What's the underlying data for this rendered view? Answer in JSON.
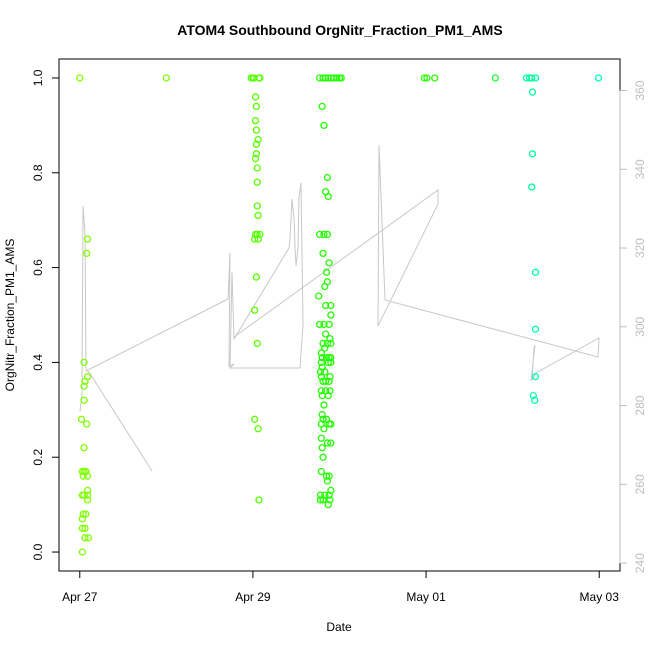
{
  "chart_data": {
    "type": "scatter",
    "title": "ATOM4 Southbound OrgNitr_Fraction_PM1_AMS",
    "xlabel": "Date",
    "ylabel": "OrgNitr_Fraction_PM1_AMS",
    "x_unit": "days since Apr 27 00:00",
    "xlim": [
      -0.24,
      6.24
    ],
    "ylim": [
      -0.04,
      1.04
    ],
    "y2lim": [
      238,
      368
    ],
    "x_ticks": [
      {
        "value": 0,
        "label": "Apr 27"
      },
      {
        "value": 2,
        "label": "Apr 29"
      },
      {
        "value": 4,
        "label": "May 01"
      },
      {
        "value": 6,
        "label": "May 03"
      }
    ],
    "y_ticks": [
      {
        "value": 0.0,
        "label": "0.0"
      },
      {
        "value": 0.2,
        "label": "0.2"
      },
      {
        "value": 0.4,
        "label": "0.4"
      },
      {
        "value": 0.6,
        "label": "0.6"
      },
      {
        "value": 0.8,
        "label": "0.8"
      },
      {
        "value": 1.0,
        "label": "1.0"
      }
    ],
    "y2_ticks": [
      {
        "value": 240,
        "label": "240"
      },
      {
        "value": 260,
        "label": "260"
      },
      {
        "value": 280,
        "label": "280"
      },
      {
        "value": 300,
        "label": "300"
      },
      {
        "value": 320,
        "label": "320"
      },
      {
        "value": 340,
        "label": "340"
      },
      {
        "value": 360,
        "label": "360"
      }
    ],
    "points_colors": {
      "yellowgreen": "#7fff00",
      "green": "#00ff00",
      "springgreen": "#00ff7f",
      "cyan": "#00ffbf"
    },
    "points": [
      [
        0.0,
        1.0,
        "#7fff00"
      ],
      [
        0.02,
        0.28,
        "#7fff00"
      ],
      [
        0.03,
        0.17,
        "#7fff00"
      ],
      [
        0.03,
        0.12,
        "#7fff00"
      ],
      [
        0.03,
        0.07,
        "#7fff00"
      ],
      [
        0.03,
        0.05,
        "#7fff00"
      ],
      [
        0.03,
        0.0,
        "#7fff00"
      ],
      [
        0.04,
        0.16,
        "#7fff00"
      ],
      [
        0.04,
        0.08,
        "#7fff00"
      ],
      [
        0.05,
        0.4,
        "#7fff00"
      ],
      [
        0.05,
        0.35,
        "#7fff00"
      ],
      [
        0.05,
        0.32,
        "#7fff00"
      ],
      [
        0.05,
        0.22,
        "#7fff00"
      ],
      [
        0.05,
        0.17,
        "#7fff00"
      ],
      [
        0.05,
        0.12,
        "#7fff00"
      ],
      [
        0.06,
        0.36,
        "#7fff00"
      ],
      [
        0.06,
        0.05,
        "#7fff00"
      ],
      [
        0.06,
        0.03,
        "#7fff00"
      ],
      [
        0.07,
        0.08,
        "#7fff00"
      ],
      [
        0.07,
        0.17,
        "#7fff00"
      ],
      [
        0.08,
        0.63,
        "#7fff00"
      ],
      [
        0.08,
        0.27,
        "#7fff00"
      ],
      [
        0.09,
        0.66,
        "#7fff00"
      ],
      [
        0.09,
        0.37,
        "#7fff00"
      ],
      [
        0.09,
        0.16,
        "#7fff00"
      ],
      [
        0.09,
        0.13,
        "#7fff00"
      ],
      [
        0.09,
        0.12,
        "#7fff00"
      ],
      [
        0.09,
        0.11,
        "#7fff00"
      ],
      [
        0.1,
        0.03,
        "#7fff00"
      ],
      [
        1.0,
        1.0,
        "#7fff00"
      ],
      [
        1.98,
        1.0,
        "#55ff00"
      ],
      [
        2.0,
        1.0,
        "#55ff00"
      ],
      [
        2.01,
        1.0,
        "#55ff00"
      ],
      [
        2.02,
        0.28,
        "#55ff00"
      ],
      [
        2.02,
        0.51,
        "#55ff00"
      ],
      [
        2.02,
        0.66,
        "#55ff00"
      ],
      [
        2.03,
        0.96,
        "#55ff00"
      ],
      [
        2.03,
        0.91,
        "#55ff00"
      ],
      [
        2.03,
        0.83,
        "#55ff00"
      ],
      [
        2.03,
        0.67,
        "#55ff00"
      ],
      [
        2.04,
        0.94,
        "#55ff00"
      ],
      [
        2.04,
        0.89,
        "#55ff00"
      ],
      [
        2.04,
        0.86,
        "#55ff00"
      ],
      [
        2.04,
        0.84,
        "#55ff00"
      ],
      [
        2.04,
        0.58,
        "#55ff00"
      ],
      [
        2.05,
        0.81,
        "#55ff00"
      ],
      [
        2.05,
        0.78,
        "#55ff00"
      ],
      [
        2.05,
        0.73,
        "#55ff00"
      ],
      [
        2.05,
        0.67,
        "#55ff00"
      ],
      [
        2.05,
        0.44,
        "#55ff00"
      ],
      [
        2.06,
        0.87,
        "#55ff00"
      ],
      [
        2.06,
        0.71,
        "#55ff00"
      ],
      [
        2.06,
        0.66,
        "#55ff00"
      ],
      [
        2.06,
        0.26,
        "#55ff00"
      ],
      [
        2.07,
        0.11,
        "#55ff00"
      ],
      [
        2.07,
        1.0,
        "#55ff00"
      ],
      [
        2.08,
        1.0,
        "#55ff00"
      ],
      [
        2.08,
        0.67,
        "#55ff00"
      ],
      [
        2.77,
        1.0,
        "#22ff00"
      ],
      [
        2.81,
        1.0,
        "#22ff00"
      ],
      [
        2.84,
        1.0,
        "#22ff00"
      ],
      [
        2.87,
        1.0,
        "#22ff00"
      ],
      [
        2.9,
        1.0,
        "#22ff00"
      ],
      [
        2.93,
        1.0,
        "#22ff00"
      ],
      [
        2.97,
        1.0,
        "#22ff00"
      ],
      [
        3.0,
        1.0,
        "#22ff00"
      ],
      [
        3.02,
        1.0,
        "#22ff00"
      ],
      [
        2.76,
        0.54,
        "#22ff00"
      ],
      [
        2.77,
        0.67,
        "#22ff00"
      ],
      [
        2.77,
        0.48,
        "#22ff00"
      ],
      [
        2.78,
        0.38,
        "#22ff00"
      ],
      [
        2.78,
        0.12,
        "#22ff00"
      ],
      [
        2.78,
        0.11,
        "#22ff00"
      ],
      [
        2.79,
        0.42,
        "#22ff00"
      ],
      [
        2.79,
        0.4,
        "#22ff00"
      ],
      [
        2.79,
        0.37,
        "#22ff00"
      ],
      [
        2.79,
        0.34,
        "#22ff00"
      ],
      [
        2.79,
        0.27,
        "#22ff00"
      ],
      [
        2.79,
        0.24,
        "#22ff00"
      ],
      [
        2.79,
        0.17,
        "#22ff00"
      ],
      [
        2.8,
        0.94,
        "#22ff00"
      ],
      [
        2.8,
        0.41,
        "#22ff00"
      ],
      [
        2.8,
        0.39,
        "#22ff00"
      ],
      [
        2.8,
        0.33,
        "#22ff00"
      ],
      [
        2.8,
        0.29,
        "#22ff00"
      ],
      [
        2.8,
        0.22,
        "#22ff00"
      ],
      [
        2.81,
        0.63,
        "#22ff00"
      ],
      [
        2.81,
        0.44,
        "#22ff00"
      ],
      [
        2.81,
        0.36,
        "#22ff00"
      ],
      [
        2.81,
        0.28,
        "#22ff00"
      ],
      [
        2.81,
        0.2,
        "#22ff00"
      ],
      [
        2.81,
        0.11,
        "#22ff00"
      ],
      [
        2.82,
        0.9,
        "#22ff00"
      ],
      [
        2.82,
        0.67,
        "#22ff00"
      ],
      [
        2.82,
        0.48,
        "#22ff00"
      ],
      [
        2.82,
        0.31,
        "#22ff00"
      ],
      [
        2.82,
        0.26,
        "#22ff00"
      ],
      [
        2.83,
        0.56,
        "#22ff00"
      ],
      [
        2.83,
        0.43,
        "#22ff00"
      ],
      [
        2.83,
        0.38,
        "#22ff00"
      ],
      [
        2.83,
        0.12,
        "#22ff00"
      ],
      [
        2.84,
        0.76,
        "#22ff00"
      ],
      [
        2.84,
        0.52,
        "#22ff00"
      ],
      [
        2.84,
        0.46,
        "#22ff00"
      ],
      [
        2.84,
        0.36,
        "#22ff00"
      ],
      [
        2.84,
        0.34,
        "#22ff00"
      ],
      [
        2.85,
        0.59,
        "#22ff00"
      ],
      [
        2.85,
        0.41,
        "#22ff00"
      ],
      [
        2.85,
        0.28,
        "#22ff00"
      ],
      [
        2.85,
        0.16,
        "#22ff00"
      ],
      [
        2.86,
        0.79,
        "#22ff00"
      ],
      [
        2.86,
        0.67,
        "#22ff00"
      ],
      [
        2.86,
        0.57,
        "#22ff00"
      ],
      [
        2.86,
        0.44,
        "#22ff00"
      ],
      [
        2.86,
        0.23,
        "#22ff00"
      ],
      [
        2.86,
        0.15,
        "#22ff00"
      ],
      [
        2.87,
        0.75,
        "#22ff00"
      ],
      [
        2.87,
        0.4,
        "#22ff00"
      ],
      [
        2.87,
        0.33,
        "#22ff00"
      ],
      [
        2.87,
        0.1,
        "#22ff00"
      ],
      [
        2.88,
        0.61,
        "#22ff00"
      ],
      [
        2.88,
        0.48,
        "#22ff00"
      ],
      [
        2.88,
        0.41,
        "#22ff00"
      ],
      [
        2.88,
        0.36,
        "#22ff00"
      ],
      [
        2.88,
        0.27,
        "#22ff00"
      ],
      [
        2.88,
        0.16,
        "#22ff00"
      ],
      [
        2.88,
        0.12,
        "#22ff00"
      ],
      [
        2.89,
        0.45,
        "#22ff00"
      ],
      [
        2.89,
        0.37,
        "#22ff00"
      ],
      [
        2.89,
        0.34,
        "#22ff00"
      ],
      [
        2.89,
        0.11,
        "#22ff00"
      ],
      [
        2.9,
        0.52,
        "#22ff00"
      ],
      [
        2.9,
        0.5,
        "#22ff00"
      ],
      [
        2.9,
        0.44,
        "#22ff00"
      ],
      [
        2.9,
        0.41,
        "#22ff00"
      ],
      [
        2.9,
        0.4,
        "#22ff00"
      ],
      [
        2.9,
        0.27,
        "#22ff00"
      ],
      [
        2.9,
        0.23,
        "#22ff00"
      ],
      [
        2.9,
        0.13,
        "#22ff00"
      ]
    ]
  }
}
